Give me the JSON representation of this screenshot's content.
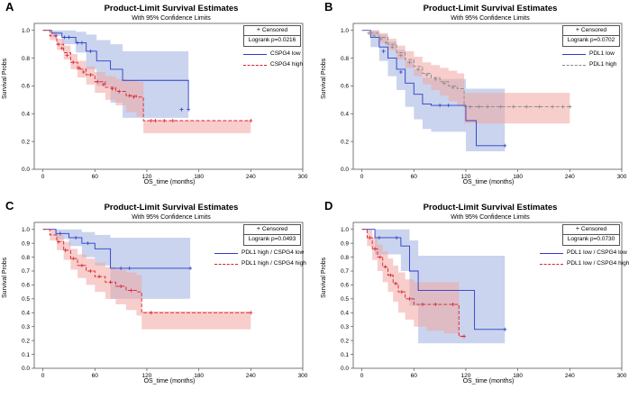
{
  "panels": [
    {
      "label": "A",
      "title": "Product-Limit Survival Estimates",
      "subtitle": "With 95% Confidence Limits",
      "censored_label": "Censored",
      "logrank": "Logrank p=0.0216",
      "legend": [
        "CSPG4 low",
        "CSPG4 high"
      ]
    },
    {
      "label": "B",
      "title": "Product-Limit Survival Estimates",
      "subtitle": "With 95% Confidence Limits",
      "censored_label": "Censored",
      "logrank": "Logrank p=0.0702",
      "legend": [
        "PDL1 low",
        "PDL1 high"
      ]
    },
    {
      "label": "C",
      "title": "Product-Limit Survival Estimates",
      "subtitle": "With 95% Confidence Limits",
      "censored_label": "Censored",
      "logrank": "Logrank p=0.0493",
      "legend": [
        "PDL1 high / CSPG4 low",
        "PDL1 high / CSPG4 high"
      ]
    },
    {
      "label": "D",
      "title": "Product-Limit Survival Estimates",
      "subtitle": "With 95% Confidence Limits",
      "censored_label": "Censored",
      "logrank": "Logrank p=0.0730",
      "legend": [
        "PDL1 low / CSPG4 low",
        "PDL1 low / CSPG4 high"
      ]
    }
  ],
  "colors": {
    "low_line": "#2b3cc6",
    "low_band": "#9fb0e0",
    "high_line": "#d9202f",
    "high_band": "#f1a6a2"
  },
  "chart_data": [
    {
      "type": "line",
      "xlabel": "OS_time (months)",
      "ylabel": "Survival Probs",
      "xlim": [
        -10,
        300
      ],
      "ylim": [
        0,
        1.05
      ],
      "xticks": [
        0,
        60,
        120,
        180,
        240,
        300
      ],
      "yticks": [
        0.0,
        0.2,
        0.4,
        0.6,
        0.8,
        1.0
      ],
      "series": [
        {
          "name": "CSPG4 low",
          "style": "solid",
          "color": "#2b3cc6",
          "x": [
            0,
            10,
            22,
            38,
            50,
            62,
            78,
            92,
            118,
            168
          ],
          "y": [
            1.0,
            0.98,
            0.95,
            0.91,
            0.85,
            0.78,
            0.72,
            0.64,
            0.64,
            0.43
          ],
          "ci_low": [
            1.0,
            0.96,
            0.9,
            0.84,
            0.72,
            0.6,
            0.48,
            0.37,
            0.37,
            0.42
          ],
          "ci_high": [
            1.0,
            1.0,
            1.0,
            0.99,
            0.97,
            0.93,
            0.9,
            0.85,
            0.85,
            0.44
          ],
          "censored": [
            [
              15,
              0.96
            ],
            [
              25,
              0.95
            ],
            [
              30,
              0.95
            ],
            [
              40,
              0.91
            ],
            [
              45,
              0.91
            ],
            [
              55,
              0.85
            ],
            [
              160,
              0.43
            ],
            [
              168,
              0.43
            ]
          ]
        },
        {
          "name": "CSPG4 high",
          "style": "dashed",
          "color": "#d9202f",
          "x": [
            0,
            8,
            16,
            24,
            32,
            40,
            50,
            60,
            72,
            84,
            96,
            108,
            116,
            240
          ],
          "y": [
            1.0,
            0.96,
            0.9,
            0.84,
            0.77,
            0.72,
            0.68,
            0.63,
            0.59,
            0.56,
            0.53,
            0.52,
            0.35,
            0.35
          ],
          "ci_low": [
            1.0,
            0.93,
            0.86,
            0.79,
            0.72,
            0.66,
            0.61,
            0.55,
            0.5,
            0.46,
            0.41,
            0.38,
            0.26,
            0.34
          ],
          "ci_high": [
            1.0,
            0.99,
            0.94,
            0.89,
            0.83,
            0.78,
            0.74,
            0.7,
            0.67,
            0.65,
            0.64,
            0.63,
            0.35,
            0.36
          ],
          "censored": [
            [
              18,
              0.9
            ],
            [
              22,
              0.87
            ],
            [
              28,
              0.82
            ],
            [
              35,
              0.77
            ],
            [
              42,
              0.73
            ],
            [
              47,
              0.7
            ],
            [
              55,
              0.68
            ],
            [
              63,
              0.63
            ],
            [
              70,
              0.61
            ],
            [
              80,
              0.58
            ],
            [
              88,
              0.56
            ],
            [
              100,
              0.53
            ],
            [
              105,
              0.52
            ],
            [
              125,
              0.35
            ],
            [
              130,
              0.35
            ],
            [
              140,
              0.35
            ],
            [
              150,
              0.35
            ],
            [
              240,
              0.35
            ]
          ]
        }
      ]
    },
    {
      "type": "line",
      "xlabel": "OS_time (months)",
      "ylabel": "Survival Probs",
      "xlim": [
        -10,
        300
      ],
      "ylim": [
        0,
        1.05
      ],
      "xticks": [
        0,
        60,
        120,
        180,
        240,
        300
      ],
      "yticks": [
        0.0,
        0.2,
        0.4,
        0.6,
        0.8,
        1.0
      ],
      "series": [
        {
          "name": "PDL1 low",
          "style": "solid",
          "color": "#2b3cc6",
          "x": [
            0,
            10,
            20,
            30,
            40,
            50,
            60,
            70,
            80,
            120,
            132,
            165
          ],
          "y": [
            1.0,
            0.95,
            0.88,
            0.8,
            0.72,
            0.62,
            0.54,
            0.47,
            0.46,
            0.35,
            0.17,
            0.17
          ],
          "ci_low": [
            1.0,
            0.88,
            0.78,
            0.67,
            0.57,
            0.45,
            0.36,
            0.29,
            0.27,
            0.13,
            0.13,
            0.16
          ],
          "ci_high": [
            1.0,
            1.0,
            0.97,
            0.92,
            0.86,
            0.78,
            0.72,
            0.66,
            0.65,
            0.58,
            0.58,
            0.18
          ],
          "censored": [
            [
              25,
              0.85
            ],
            [
              45,
              0.7
            ],
            [
              90,
              0.46
            ],
            [
              100,
              0.46
            ],
            [
              165,
              0.17
            ]
          ]
        },
        {
          "name": "PDL1 high",
          "style": "dashed",
          "color": "#888888",
          "x": [
            0,
            10,
            20,
            30,
            40,
            50,
            60,
            70,
            80,
            90,
            100,
            110,
            118,
            240
          ],
          "y": [
            1.0,
            0.98,
            0.95,
            0.9,
            0.84,
            0.79,
            0.74,
            0.69,
            0.66,
            0.63,
            0.6,
            0.58,
            0.45,
            0.45
          ],
          "ci_low": [
            1.0,
            0.96,
            0.91,
            0.86,
            0.79,
            0.73,
            0.67,
            0.61,
            0.57,
            0.53,
            0.49,
            0.46,
            0.33,
            0.44
          ],
          "ci_high": [
            1.0,
            1.0,
            0.98,
            0.94,
            0.89,
            0.85,
            0.81,
            0.77,
            0.75,
            0.73,
            0.71,
            0.69,
            0.55,
            0.46
          ],
          "censored": [
            [
              8,
              0.98
            ],
            [
              14,
              0.96
            ],
            [
              22,
              0.94
            ],
            [
              28,
              0.91
            ],
            [
              35,
              0.88
            ],
            [
              45,
              0.82
            ],
            [
              55,
              0.77
            ],
            [
              65,
              0.72
            ],
            [
              75,
              0.68
            ],
            [
              85,
              0.65
            ],
            [
              95,
              0.62
            ],
            [
              105,
              0.59
            ],
            [
              125,
              0.45
            ],
            [
              135,
              0.45
            ],
            [
              145,
              0.45
            ],
            [
              160,
              0.45
            ],
            [
              175,
              0.45
            ],
            [
              190,
              0.45
            ],
            [
              205,
              0.45
            ],
            [
              220,
              0.45
            ],
            [
              232,
              0.45
            ],
            [
              240,
              0.45
            ]
          ]
        }
      ]
    },
    {
      "type": "line",
      "xlabel": "OS_time (months)",
      "ylabel": "Survival Probs",
      "xlim": [
        -10,
        300
      ],
      "ylim": [
        0,
        1.05
      ],
      "xticks": [
        0,
        60,
        120,
        180,
        240,
        300
      ],
      "yticks": [
        0.0,
        0.1,
        0.2,
        0.3,
        0.4,
        0.5,
        0.6,
        0.7,
        0.8,
        0.9,
        1.0
      ],
      "series": [
        {
          "name": "PDL1 high / CSPG4 low",
          "style": "solid",
          "color": "#2b3cc6",
          "x": [
            0,
            15,
            30,
            45,
            60,
            78,
            170
          ],
          "y": [
            1.0,
            0.97,
            0.94,
            0.9,
            0.86,
            0.72,
            0.72
          ],
          "ci_low": [
            1.0,
            0.93,
            0.88,
            0.8,
            0.74,
            0.5,
            0.71
          ],
          "ci_high": [
            1.0,
            1.0,
            1.0,
            0.98,
            0.96,
            0.94,
            0.73
          ],
          "censored": [
            [
              20,
              0.97
            ],
            [
              38,
              0.94
            ],
            [
              52,
              0.9
            ],
            [
              90,
              0.72
            ],
            [
              100,
              0.72
            ],
            [
              170,
              0.72
            ]
          ]
        },
        {
          "name": "PDL1 high / CSPG4 high",
          "style": "dashed",
          "color": "#d9202f",
          "x": [
            0,
            8,
            16,
            24,
            32,
            40,
            50,
            60,
            72,
            84,
            96,
            108,
            114,
            240
          ],
          "y": [
            1.0,
            0.96,
            0.91,
            0.85,
            0.79,
            0.74,
            0.7,
            0.66,
            0.62,
            0.59,
            0.56,
            0.55,
            0.4,
            0.4
          ],
          "ci_low": [
            1.0,
            0.92,
            0.85,
            0.78,
            0.71,
            0.65,
            0.6,
            0.55,
            0.5,
            0.46,
            0.42,
            0.38,
            0.28,
            0.39
          ],
          "ci_high": [
            1.0,
            1.0,
            0.96,
            0.91,
            0.86,
            0.82,
            0.79,
            0.76,
            0.73,
            0.71,
            0.69,
            0.67,
            0.41,
            0.41
          ],
          "censored": [
            [
              18,
              0.91
            ],
            [
              26,
              0.85
            ],
            [
              35,
              0.79
            ],
            [
              45,
              0.74
            ],
            [
              55,
              0.7
            ],
            [
              65,
              0.66
            ],
            [
              78,
              0.62
            ],
            [
              90,
              0.59
            ],
            [
              102,
              0.56
            ],
            [
              125,
              0.4
            ],
            [
              240,
              0.4
            ]
          ]
        }
      ]
    },
    {
      "type": "line",
      "xlabel": "OS_time (months)",
      "ylabel": "Survival Probs",
      "xlim": [
        -10,
        300
      ],
      "ylim": [
        0,
        1.05
      ],
      "xticks": [
        0,
        60,
        120,
        180,
        240,
        300
      ],
      "yticks": [
        0.0,
        0.1,
        0.2,
        0.3,
        0.4,
        0.5,
        0.6,
        0.7,
        0.8,
        0.9,
        1.0
      ],
      "series": [
        {
          "name": "PDL1 low / CSPG4 low",
          "style": "solid",
          "color": "#2b3cc6",
          "x": [
            0,
            15,
            30,
            45,
            55,
            65,
            130,
            165
          ],
          "y": [
            1.0,
            0.94,
            0.94,
            0.88,
            0.7,
            0.56,
            0.28,
            0.28
          ],
          "ci_low": [
            1.0,
            0.82,
            0.82,
            0.7,
            0.45,
            0.18,
            0.18,
            0.27
          ],
          "ci_high": [
            1.0,
            1.0,
            1.0,
            1.0,
            0.92,
            0.81,
            0.81,
            0.29
          ],
          "censored": [
            [
              20,
              0.94
            ],
            [
              40,
              0.94
            ],
            [
              165,
              0.28
            ]
          ]
        },
        {
          "name": "PDL1 low / CSPG4 high",
          "style": "dashed",
          "color": "#d9202f",
          "x": [
            0,
            6,
            12,
            18,
            24,
            30,
            36,
            42,
            50,
            60,
            75,
            95,
            112,
            118
          ],
          "y": [
            1.0,
            0.94,
            0.86,
            0.8,
            0.73,
            0.67,
            0.61,
            0.55,
            0.5,
            0.46,
            0.46,
            0.46,
            0.23,
            0.23
          ],
          "ci_low": [
            1.0,
            0.88,
            0.78,
            0.7,
            0.62,
            0.55,
            0.48,
            0.4,
            0.35,
            0.3,
            0.27,
            0.25,
            0.22,
            0.22
          ],
          "ci_high": [
            1.0,
            1.0,
            0.94,
            0.89,
            0.84,
            0.79,
            0.74,
            0.69,
            0.64,
            0.62,
            0.62,
            0.62,
            0.24,
            0.24
          ],
          "censored": [
            [
              9,
              0.94
            ],
            [
              15,
              0.86
            ],
            [
              21,
              0.8
            ],
            [
              27,
              0.73
            ],
            [
              33,
              0.67
            ],
            [
              39,
              0.61
            ],
            [
              46,
              0.55
            ],
            [
              55,
              0.5
            ],
            [
              70,
              0.46
            ],
            [
              85,
              0.46
            ],
            [
              105,
              0.46
            ],
            [
              118,
              0.23
            ]
          ]
        }
      ]
    }
  ]
}
